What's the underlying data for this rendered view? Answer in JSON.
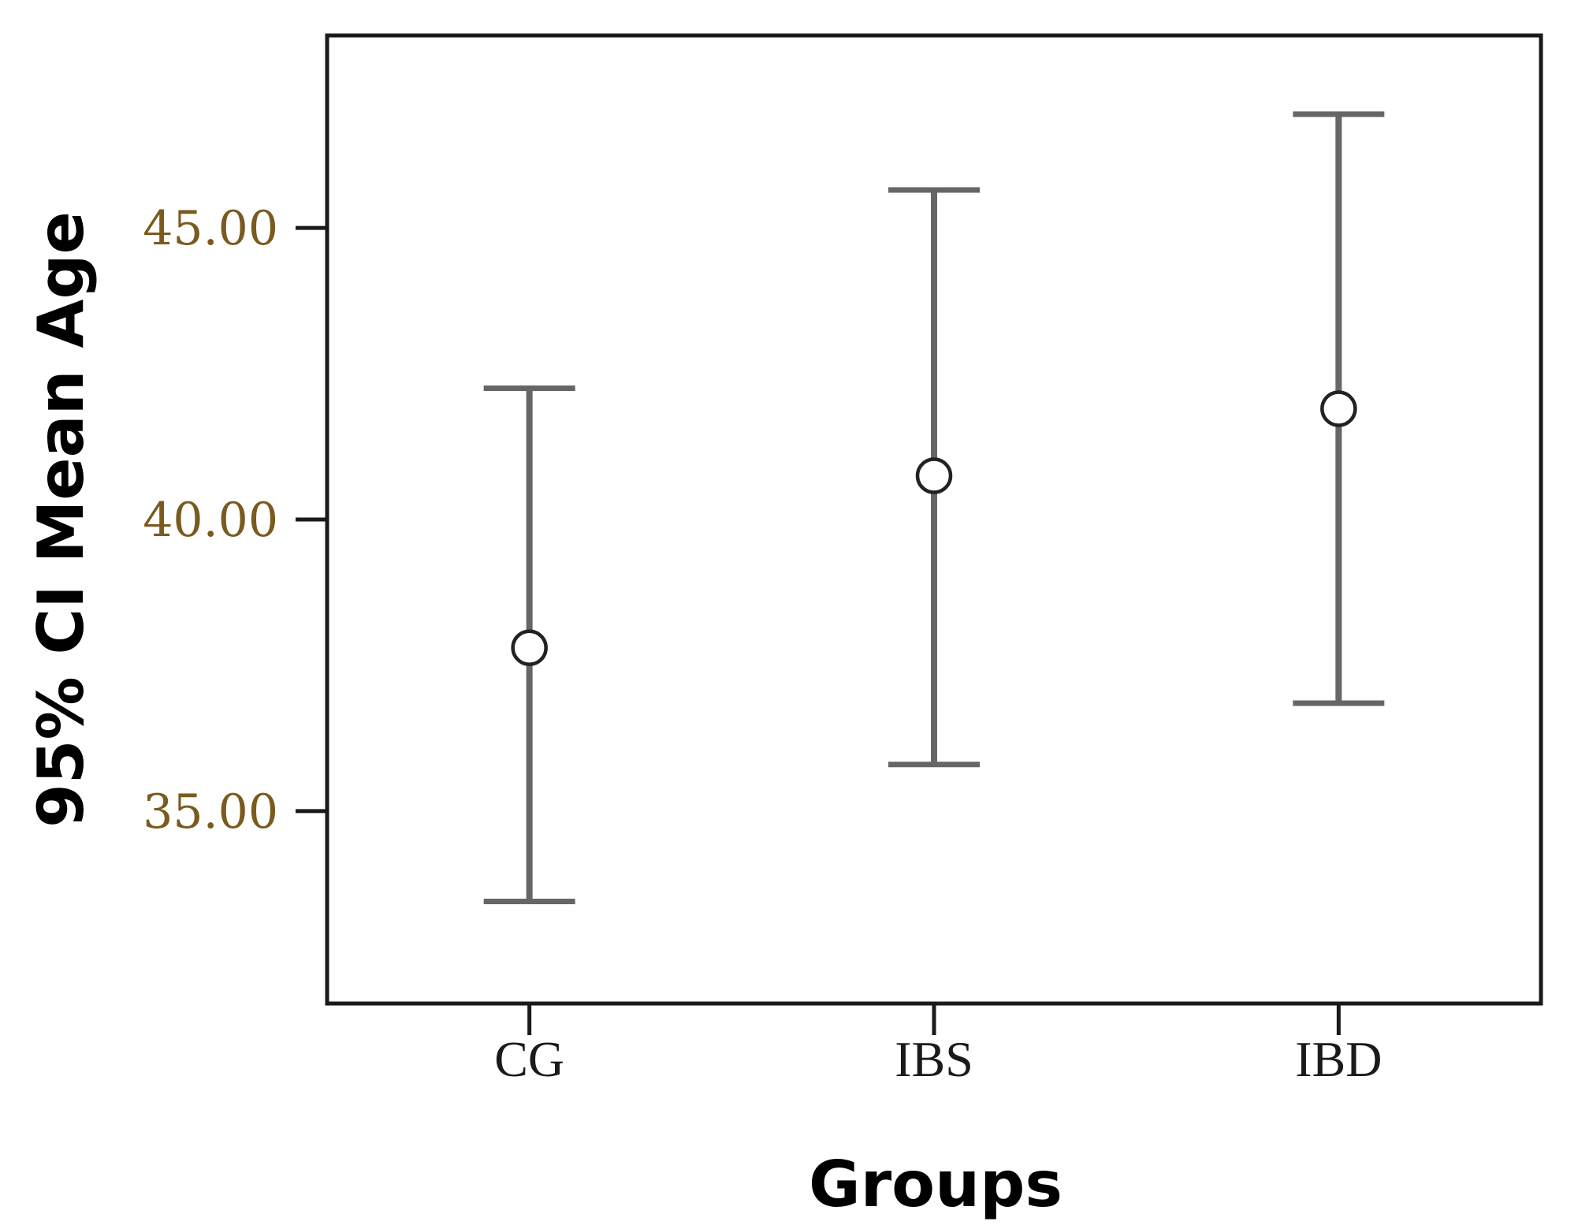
{
  "chart_data": {
    "type": "errorbar",
    "xlabel": "Groups",
    "ylabel": "95% CI Mean Age",
    "categories": [
      "CG",
      "IBS",
      "IBD"
    ],
    "series": [
      {
        "mean": [
          37.8,
          40.75,
          41.9
        ],
        "ci_lower": [
          33.45,
          35.8,
          36.85
        ],
        "ci_upper": [
          42.25,
          45.65,
          46.95
        ]
      }
    ],
    "ylim": [
      31.7,
      48.3
    ],
    "yticks": [
      {
        "value": 35,
        "label": "35.00"
      },
      {
        "value": 40,
        "label": "40.00"
      },
      {
        "value": 45,
        "label": "45.00"
      }
    ],
    "grid": false,
    "legend": "none",
    "colors": {
      "error_bar": "#666666",
      "marker": "#222222",
      "frame": "#1a1a1a",
      "tick_label": "#7a5a1e"
    }
  }
}
